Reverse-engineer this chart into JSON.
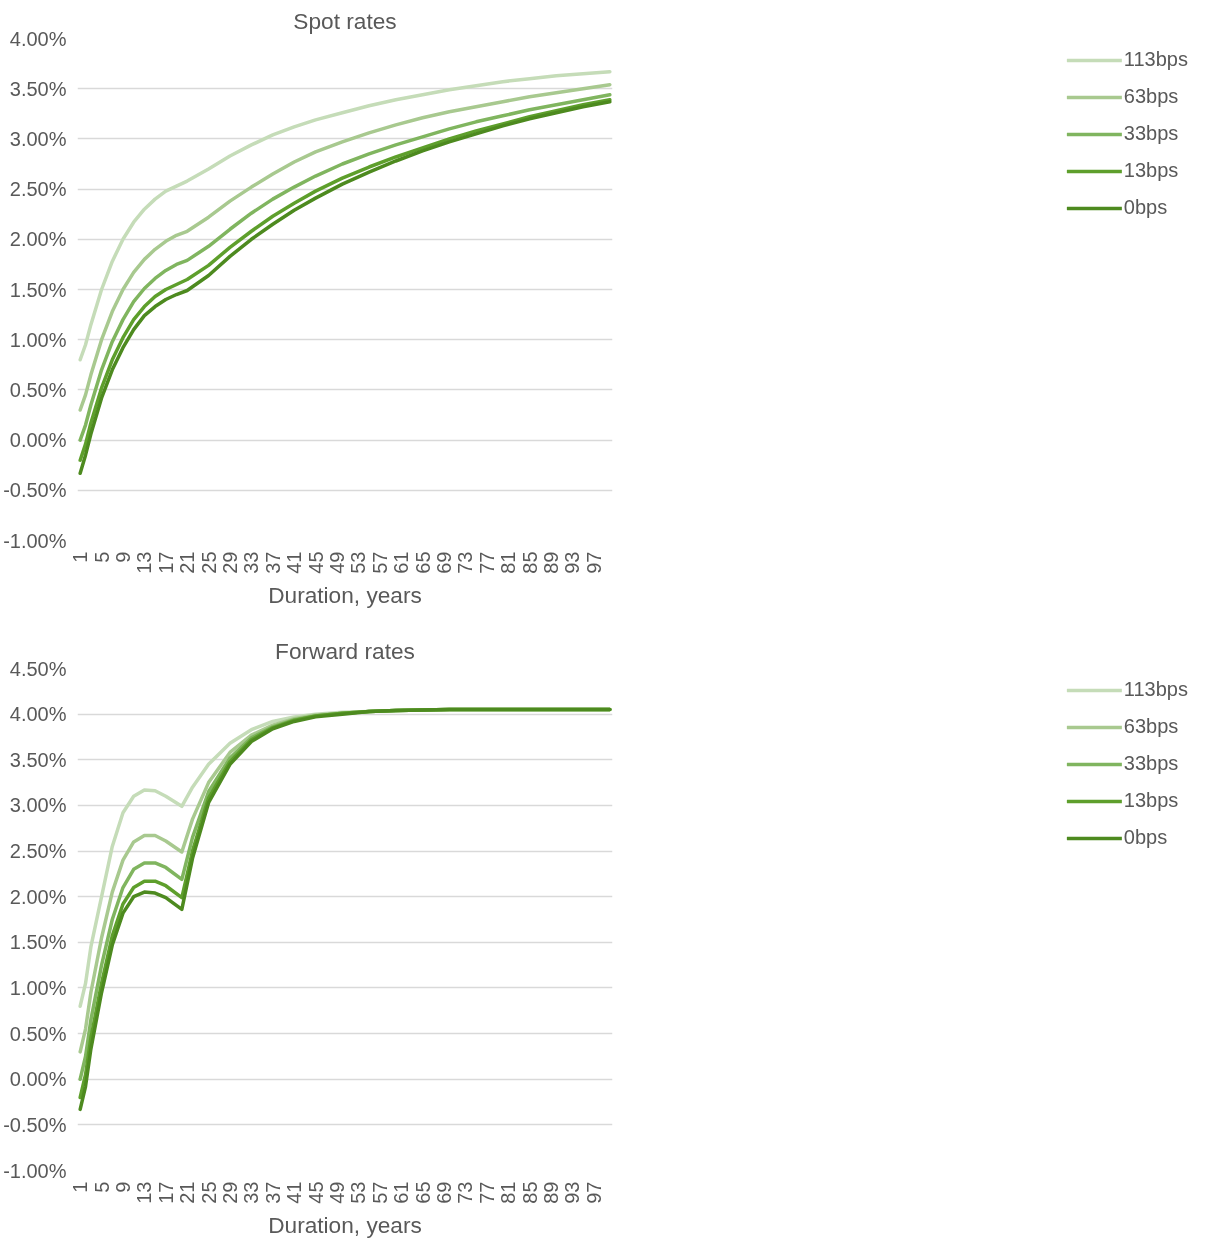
{
  "chart_data": [
    {
      "type": "line",
      "title": "Spot rates",
      "xlabel": "Duration, years",
      "legend": "right",
      "grid": "y",
      "line_style": "solid",
      "x": [
        1,
        2,
        3,
        5,
        7,
        9,
        11,
        13,
        15,
        17,
        19,
        21,
        25,
        29,
        33,
        37,
        41,
        45,
        50,
        55,
        60,
        65,
        70,
        75,
        80,
        85,
        90,
        95,
        100
      ],
      "xlim": [
        0.5,
        100.5
      ],
      "xticks": [
        1,
        5,
        9,
        13,
        17,
        21,
        25,
        29,
        33,
        37,
        41,
        45,
        49,
        53,
        57,
        61,
        65,
        69,
        73,
        77,
        81,
        85,
        89,
        93,
        97
      ],
      "ylim": [
        -1,
        4
      ],
      "yticks": [
        {
          "value": -1,
          "label": "-1.00%"
        },
        {
          "value": -0.5,
          "label": "-0.50%"
        },
        {
          "value": 0,
          "label": "0.00%"
        },
        {
          "value": 0.5,
          "label": "0.50%"
        },
        {
          "value": 1,
          "label": "1.00%"
        },
        {
          "value": 1.5,
          "label": "1.50%"
        },
        {
          "value": 2,
          "label": "2.00%"
        },
        {
          "value": 2.5,
          "label": "2.50%"
        },
        {
          "value": 3,
          "label": "3.00%"
        },
        {
          "value": 3.5,
          "label": "3.50%"
        },
        {
          "value": 4,
          "label": "4.00%"
        }
      ],
      "series": [
        {
          "name": "113bps",
          "color": "#c5dcb8",
          "values": [
            0.8,
            0.95,
            1.15,
            1.5,
            1.78,
            2.0,
            2.17,
            2.3,
            2.4,
            2.48,
            2.53,
            2.58,
            2.7,
            2.83,
            2.94,
            3.04,
            3.12,
            3.19,
            3.26,
            3.33,
            3.39,
            3.44,
            3.49,
            3.53,
            3.57,
            3.6,
            3.63,
            3.65,
            3.67
          ]
        },
        {
          "name": "63bps",
          "color": "#a8c98f",
          "values": [
            0.3,
            0.45,
            0.65,
            1.0,
            1.28,
            1.5,
            1.67,
            1.8,
            1.9,
            1.98,
            2.04,
            2.08,
            2.22,
            2.38,
            2.52,
            2.65,
            2.77,
            2.87,
            2.97,
            3.06,
            3.14,
            3.21,
            3.27,
            3.32,
            3.37,
            3.42,
            3.46,
            3.5,
            3.54
          ]
        },
        {
          "name": "33bps",
          "color": "#80b55f",
          "values": [
            0.0,
            0.15,
            0.35,
            0.7,
            0.98,
            1.2,
            1.38,
            1.51,
            1.61,
            1.69,
            1.75,
            1.79,
            1.93,
            2.1,
            2.26,
            2.4,
            2.52,
            2.63,
            2.75,
            2.85,
            2.94,
            3.02,
            3.1,
            3.17,
            3.23,
            3.29,
            3.34,
            3.39,
            3.44
          ]
        },
        {
          "name": "13bps",
          "color": "#5e9f2c",
          "values": [
            -0.2,
            -0.04,
            0.17,
            0.52,
            0.8,
            1.02,
            1.2,
            1.33,
            1.43,
            1.5,
            1.55,
            1.6,
            1.74,
            1.92,
            2.08,
            2.23,
            2.36,
            2.48,
            2.61,
            2.72,
            2.82,
            2.91,
            3.0,
            3.08,
            3.15,
            3.22,
            3.28,
            3.34,
            3.39
          ]
        },
        {
          "name": "0bps",
          "color": "#4d8a1f",
          "values": [
            -0.33,
            -0.15,
            0.06,
            0.42,
            0.7,
            0.92,
            1.1,
            1.24,
            1.33,
            1.4,
            1.45,
            1.49,
            1.64,
            1.83,
            2.0,
            2.15,
            2.29,
            2.41,
            2.55,
            2.67,
            2.78,
            2.88,
            2.97,
            3.05,
            3.13,
            3.2,
            3.26,
            3.32,
            3.37
          ]
        }
      ]
    },
    {
      "type": "line",
      "title": "Forward rates",
      "xlabel": "Duration, years",
      "legend": "right",
      "grid": "y",
      "line_style": "solid",
      "x": [
        1,
        2,
        3,
        5,
        7,
        9,
        11,
        13,
        15,
        17,
        20,
        22,
        25,
        29,
        33,
        37,
        41,
        45,
        50,
        55,
        60,
        70,
        80,
        90,
        100
      ],
      "xlim": [
        0.5,
        100.5
      ],
      "xticks": [
        1,
        5,
        9,
        13,
        17,
        21,
        25,
        29,
        33,
        37,
        41,
        45,
        49,
        53,
        57,
        61,
        65,
        69,
        73,
        77,
        81,
        85,
        89,
        93,
        97
      ],
      "ylim": [
        -1,
        4.5
      ],
      "yticks": [
        {
          "value": -1,
          "label": "-1.00%"
        },
        {
          "value": -0.5,
          "label": "-0.50%"
        },
        {
          "value": 0,
          "label": "0.00%"
        },
        {
          "value": 0.5,
          "label": "0.50%"
        },
        {
          "value": 1,
          "label": "1.00%"
        },
        {
          "value": 1.5,
          "label": "1.50%"
        },
        {
          "value": 2,
          "label": "2.00%"
        },
        {
          "value": 2.5,
          "label": "2.50%"
        },
        {
          "value": 3,
          "label": "3.00%"
        },
        {
          "value": 3.5,
          "label": "3.50%"
        },
        {
          "value": 4,
          "label": "4.00%"
        },
        {
          "value": 4.5,
          "label": "4.50%"
        }
      ],
      "series": [
        {
          "name": "113bps",
          "color": "#c5dcb8",
          "values": [
            0.8,
            1.05,
            1.45,
            2.0,
            2.55,
            2.92,
            3.1,
            3.17,
            3.16,
            3.1,
            2.99,
            3.2,
            3.45,
            3.68,
            3.83,
            3.92,
            3.97,
            4.0,
            4.02,
            4.03,
            4.04,
            4.05,
            4.05,
            4.05,
            4.05
          ]
        },
        {
          "name": "63bps",
          "color": "#a8c98f",
          "values": [
            0.3,
            0.55,
            0.95,
            1.55,
            2.05,
            2.4,
            2.6,
            2.67,
            2.67,
            2.61,
            2.49,
            2.85,
            3.25,
            3.58,
            3.77,
            3.88,
            3.95,
            3.99,
            4.01,
            4.03,
            4.04,
            4.05,
            4.05,
            4.05,
            4.05
          ]
        },
        {
          "name": "33bps",
          "color": "#80b55f",
          "values": [
            0.0,
            0.25,
            0.65,
            1.25,
            1.75,
            2.1,
            2.3,
            2.37,
            2.37,
            2.32,
            2.19,
            2.65,
            3.15,
            3.52,
            3.74,
            3.86,
            3.94,
            3.98,
            4.01,
            4.03,
            4.04,
            4.05,
            4.05,
            4.05,
            4.05
          ]
        },
        {
          "name": "13bps",
          "color": "#5e9f2c",
          "values": [
            -0.2,
            0.05,
            0.45,
            1.05,
            1.57,
            1.92,
            2.1,
            2.17,
            2.17,
            2.12,
            1.99,
            2.5,
            3.08,
            3.48,
            3.72,
            3.85,
            3.93,
            3.98,
            4.01,
            4.03,
            4.04,
            4.05,
            4.05,
            4.05,
            4.05
          ]
        },
        {
          "name": "0bps",
          "color": "#4d8a1f",
          "values": [
            -0.33,
            -0.08,
            0.33,
            0.95,
            1.47,
            1.82,
            2.0,
            2.05,
            2.04,
            1.99,
            1.86,
            2.42,
            3.03,
            3.45,
            3.7,
            3.84,
            3.92,
            3.97,
            4.0,
            4.03,
            4.04,
            4.05,
            4.05,
            4.05,
            4.05
          ]
        }
      ]
    }
  ]
}
